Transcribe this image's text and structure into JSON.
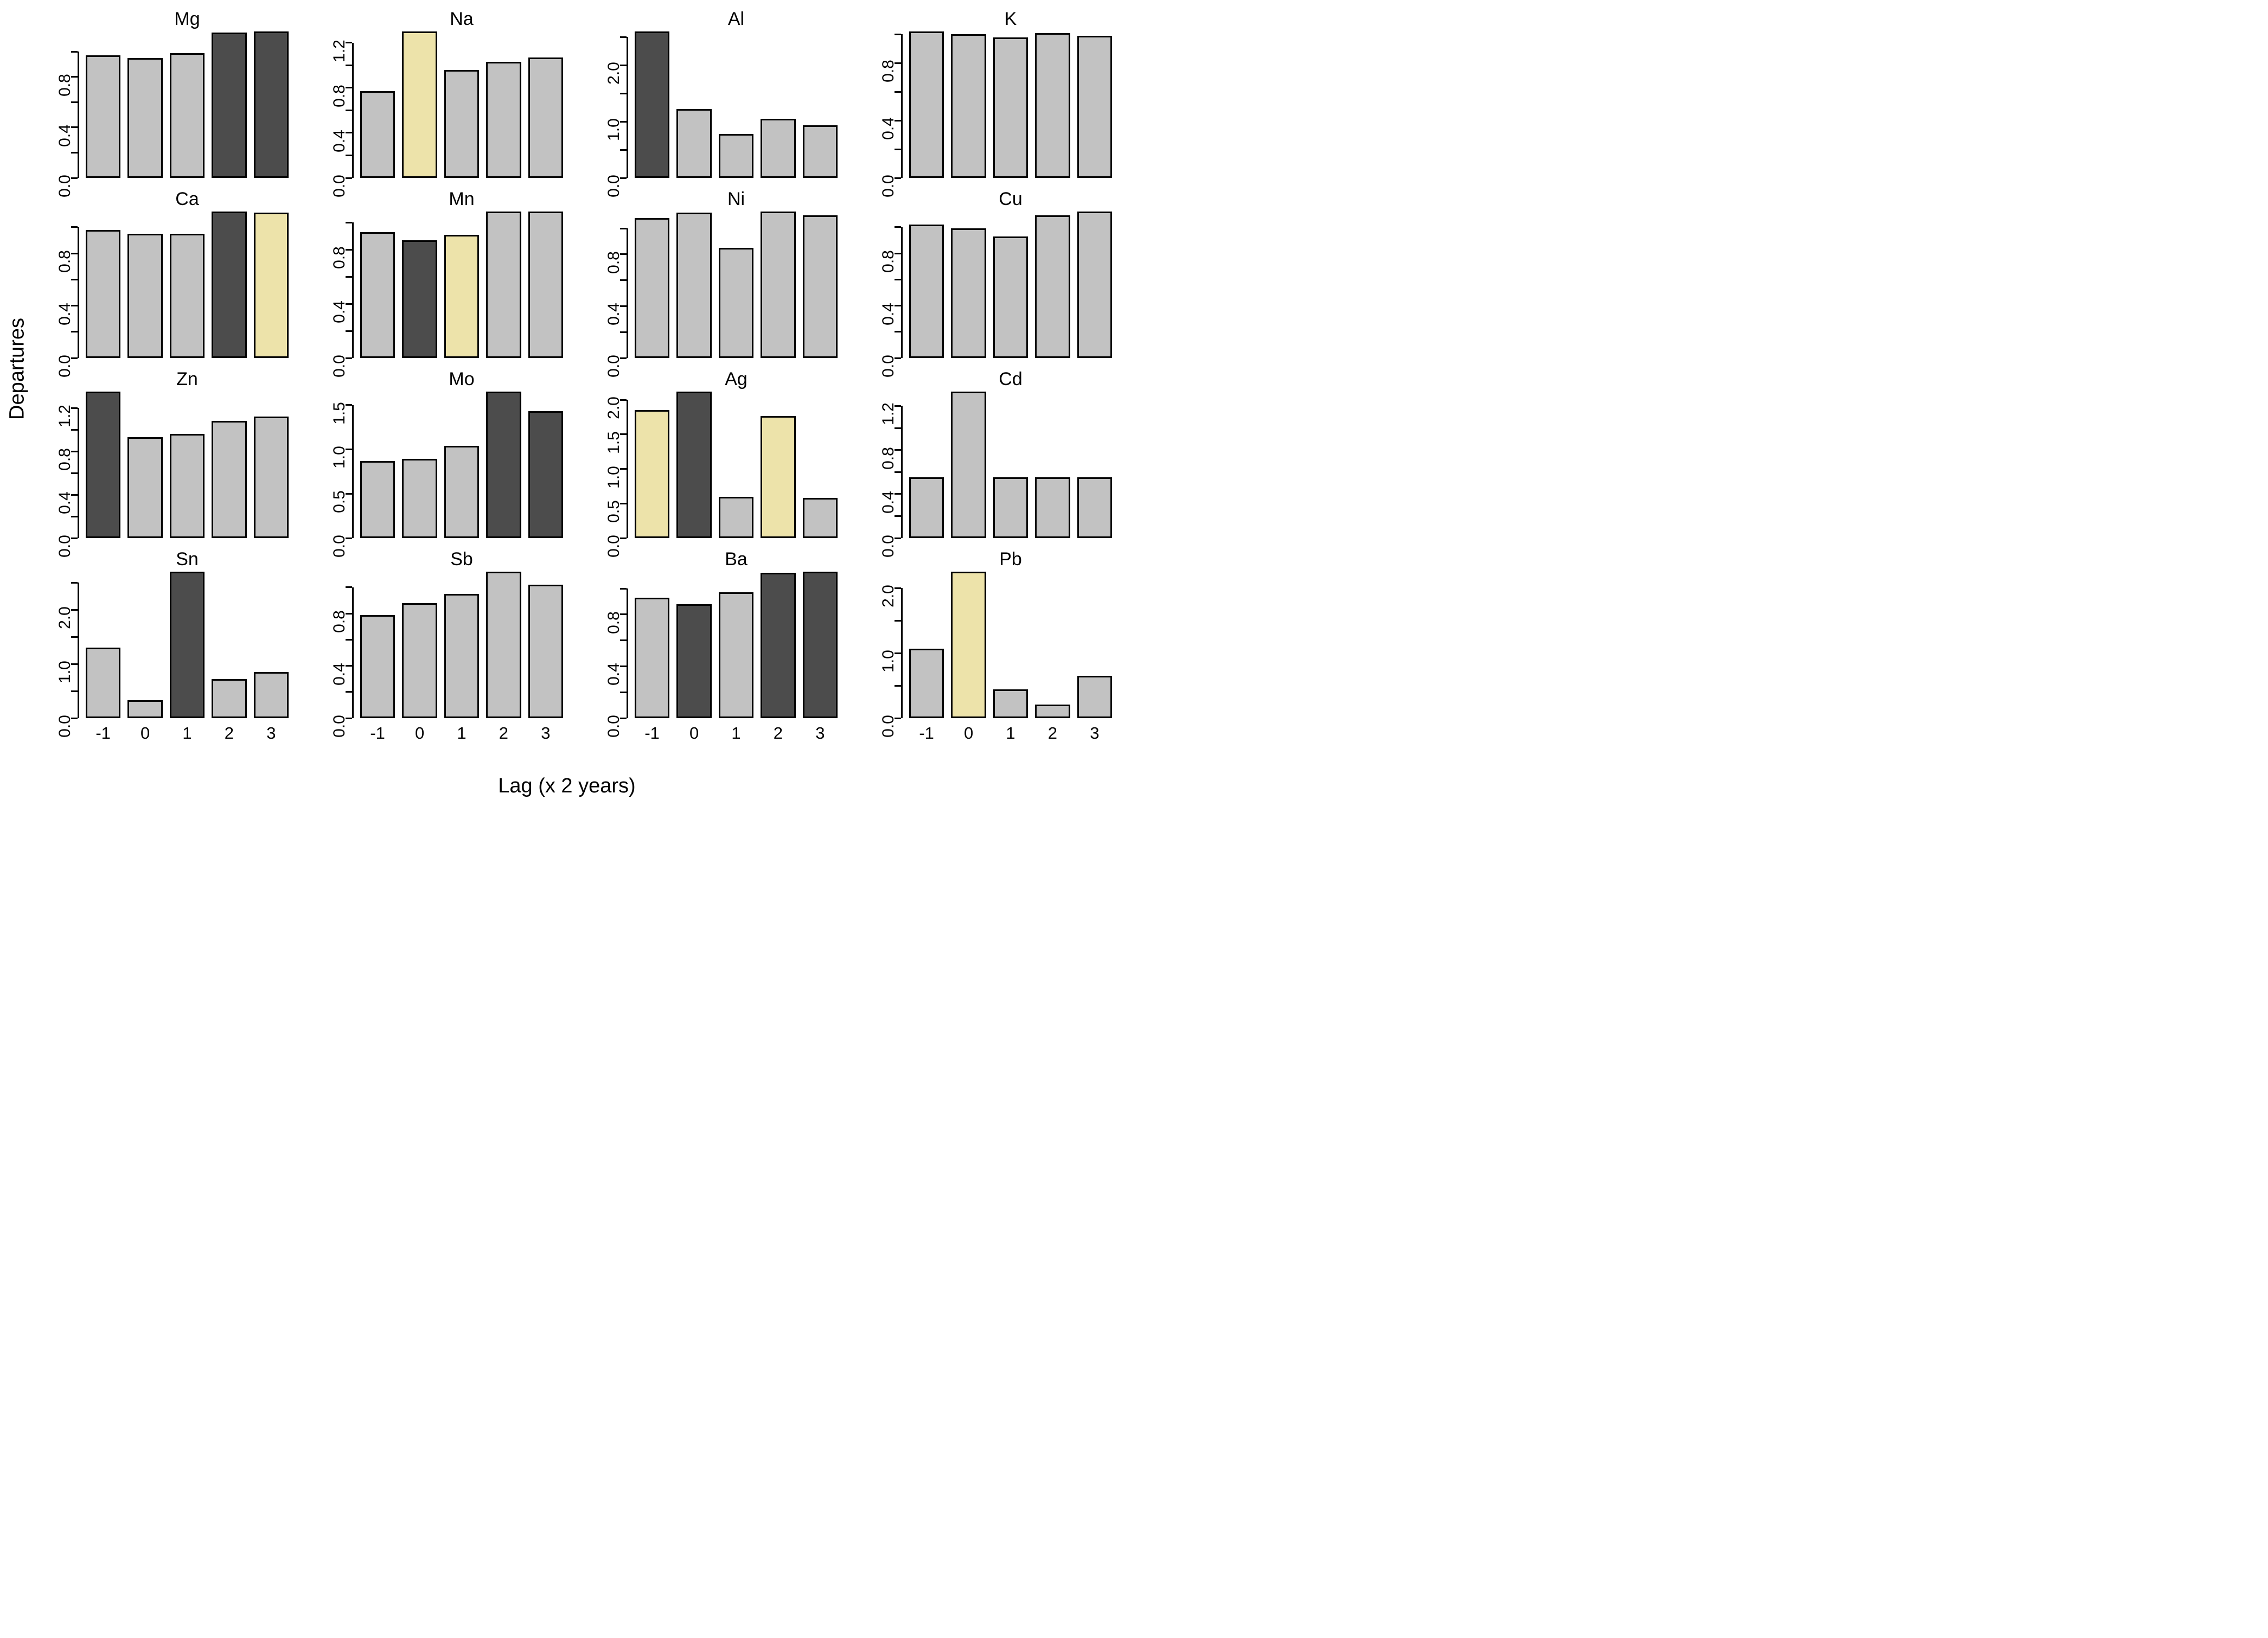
{
  "figure": {
    "ylabel": "Departures",
    "xlabel": "Lag (x 2 years)",
    "colors": {
      "gray": "#C2C2C2",
      "dark": "#4C4C4C",
      "tan": "#EDE3AA",
      "axis": "#000000",
      "background": "#FFFFFF"
    }
  },
  "x_tick_labels": [
    "-1",
    "0",
    "1",
    "2",
    "3"
  ],
  "chart_data": [
    {
      "type": "bar",
      "title": "Mg",
      "categories": [
        -1,
        0,
        1,
        2,
        3
      ],
      "values": [
        0.97,
        0.95,
        0.99,
        1.15,
        1.16
      ],
      "bar_colors": [
        "gray",
        "gray",
        "gray",
        "dark",
        "dark"
      ],
      "ymax": 1.16,
      "axis_top": 1.0,
      "ticks": [
        0,
        0.2,
        0.4,
        0.6,
        0.8,
        1.0
      ],
      "tick_labels": [
        "0.0",
        "",
        "0.4",
        "",
        "0.8",
        ""
      ]
    },
    {
      "type": "bar",
      "title": "Na",
      "categories": [
        -1,
        0,
        1,
        2,
        3
      ],
      "values": [
        0.77,
        1.3,
        0.96,
        1.03,
        1.07
      ],
      "bar_colors": [
        "gray",
        "tan",
        "gray",
        "gray",
        "gray"
      ],
      "ymax": 1.3,
      "axis_top": 1.2,
      "ticks": [
        0,
        0.2,
        0.4,
        0.6,
        0.8,
        1.0,
        1.2
      ],
      "tick_labels": [
        "0.0",
        "",
        "0.4",
        "",
        "0.8",
        "",
        "1.2"
      ]
    },
    {
      "type": "bar",
      "title": "Al",
      "categories": [
        -1,
        0,
        1,
        2,
        3
      ],
      "values": [
        2.6,
        1.22,
        0.78,
        1.05,
        0.93
      ],
      "bar_colors": [
        "dark",
        "gray",
        "gray",
        "gray",
        "gray"
      ],
      "ymax": 2.6,
      "axis_top": 2.5,
      "ticks": [
        0,
        0.5,
        1.0,
        1.5,
        2.0,
        2.5
      ],
      "tick_labels": [
        "0.0",
        "",
        "1.0",
        "",
        "2.0",
        ""
      ]
    },
    {
      "type": "bar",
      "title": "K",
      "categories": [
        -1,
        0,
        1,
        2,
        3
      ],
      "values": [
        1.02,
        1.0,
        0.98,
        1.01,
        0.99
      ],
      "bar_colors": [
        "gray",
        "gray",
        "gray",
        "gray",
        "gray"
      ],
      "ymax": 1.02,
      "axis_top": 1.0,
      "ticks": [
        0,
        0.2,
        0.4,
        0.6,
        0.8,
        1.0
      ],
      "tick_labels": [
        "0.0",
        "",
        "0.4",
        "",
        "0.8",
        ""
      ]
    },
    {
      "type": "bar",
      "title": "Ca",
      "categories": [
        -1,
        0,
        1,
        2,
        3
      ],
      "values": [
        0.98,
        0.95,
        0.95,
        1.12,
        1.11
      ],
      "bar_colors": [
        "gray",
        "gray",
        "gray",
        "dark",
        "tan"
      ],
      "ymax": 1.12,
      "axis_top": 1.0,
      "ticks": [
        0,
        0.2,
        0.4,
        0.6,
        0.8,
        1.0
      ],
      "tick_labels": [
        "0.0",
        "",
        "0.4",
        "",
        "0.8",
        ""
      ]
    },
    {
      "type": "bar",
      "title": "Mn",
      "categories": [
        -1,
        0,
        1,
        2,
        3
      ],
      "values": [
        0.93,
        0.87,
        0.91,
        1.08,
        1.08
      ],
      "bar_colors": [
        "gray",
        "dark",
        "tan",
        "gray",
        "gray"
      ],
      "ymax": 1.08,
      "axis_top": 1.0,
      "ticks": [
        0,
        0.2,
        0.4,
        0.6,
        0.8,
        1.0
      ],
      "tick_labels": [
        "0.0",
        "",
        "0.4",
        "",
        "0.8",
        ""
      ]
    },
    {
      "type": "bar",
      "title": "Ni",
      "categories": [
        -1,
        0,
        1,
        2,
        3
      ],
      "values": [
        1.08,
        1.12,
        0.85,
        1.13,
        1.1
      ],
      "bar_colors": [
        "gray",
        "gray",
        "gray",
        "gray",
        "gray"
      ],
      "ymax": 1.13,
      "axis_top": 1.0,
      "ticks": [
        0,
        0.2,
        0.4,
        0.6,
        0.8,
        1.0
      ],
      "tick_labels": [
        "0.0",
        "",
        "0.4",
        "",
        "0.8",
        ""
      ]
    },
    {
      "type": "bar",
      "title": "Cu",
      "categories": [
        -1,
        0,
        1,
        2,
        3
      ],
      "values": [
        1.02,
        0.99,
        0.93,
        1.09,
        1.12
      ],
      "bar_colors": [
        "gray",
        "gray",
        "gray",
        "gray",
        "gray"
      ],
      "ymax": 1.12,
      "axis_top": 1.0,
      "ticks": [
        0,
        0.2,
        0.4,
        0.6,
        0.8,
        1.0
      ],
      "tick_labels": [
        "0.0",
        "",
        "0.4",
        "",
        "0.8",
        ""
      ]
    },
    {
      "type": "bar",
      "title": "Zn",
      "categories": [
        -1,
        0,
        1,
        2,
        3
      ],
      "values": [
        1.35,
        0.93,
        0.96,
        1.08,
        1.12
      ],
      "bar_colors": [
        "dark",
        "gray",
        "gray",
        "gray",
        "gray"
      ],
      "ymax": 1.35,
      "axis_top": 1.2,
      "ticks": [
        0,
        0.2,
        0.4,
        0.6,
        0.8,
        1.0,
        1.2
      ],
      "tick_labels": [
        "0.0",
        "",
        "0.4",
        "",
        "0.8",
        "",
        "1.2"
      ]
    },
    {
      "type": "bar",
      "title": "Mo",
      "categories": [
        -1,
        0,
        1,
        2,
        3
      ],
      "values": [
        0.87,
        0.89,
        1.04,
        1.65,
        1.43
      ],
      "bar_colors": [
        "gray",
        "gray",
        "gray",
        "dark",
        "dark"
      ],
      "ymax": 1.65,
      "axis_top": 1.5,
      "ticks": [
        0,
        0.5,
        1.0,
        1.5
      ],
      "tick_labels": [
        "0.0",
        "0.5",
        "1.0",
        "1.5"
      ]
    },
    {
      "type": "bar",
      "title": "Ag",
      "categories": [
        -1,
        0,
        1,
        2,
        3
      ],
      "values": [
        1.85,
        2.12,
        0.6,
        1.77,
        0.58
      ],
      "bar_colors": [
        "tan",
        "dark",
        "gray",
        "tan",
        "gray"
      ],
      "ymax": 2.12,
      "axis_top": 2.0,
      "ticks": [
        0,
        0.5,
        1.0,
        1.5,
        2.0
      ],
      "tick_labels": [
        "0.0",
        "0.5",
        "1.0",
        "1.5",
        "2.0"
      ]
    },
    {
      "type": "bar",
      "title": "Cd",
      "categories": [
        -1,
        0,
        1,
        2,
        3
      ],
      "values": [
        0.55,
        1.33,
        0.55,
        0.55,
        0.55
      ],
      "bar_colors": [
        "gray",
        "gray",
        "gray",
        "gray",
        "gray"
      ],
      "ymax": 1.33,
      "axis_top": 1.2,
      "ticks": [
        0,
        0.2,
        0.4,
        0.6,
        0.8,
        1.0,
        1.2
      ],
      "tick_labels": [
        "0.0",
        "",
        "0.4",
        "",
        "0.8",
        "",
        "1.2"
      ]
    },
    {
      "type": "bar",
      "title": "Sn",
      "categories": [
        -1,
        0,
        1,
        2,
        3
      ],
      "values": [
        1.3,
        0.33,
        2.7,
        0.72,
        0.85
      ],
      "bar_colors": [
        "gray",
        "gray",
        "dark",
        "gray",
        "gray"
      ],
      "ymax": 2.7,
      "axis_top": 2.5,
      "ticks": [
        0,
        0.5,
        1.0,
        1.5,
        2.0,
        2.5
      ],
      "tick_labels": [
        "0.0",
        "",
        "1.0",
        "",
        "2.0",
        ""
      ]
    },
    {
      "type": "bar",
      "title": "Sb",
      "categories": [
        -1,
        0,
        1,
        2,
        3
      ],
      "values": [
        0.79,
        0.88,
        0.95,
        1.12,
        1.02
      ],
      "bar_colors": [
        "gray",
        "gray",
        "gray",
        "gray",
        "gray"
      ],
      "ymax": 1.12,
      "axis_top": 1.0,
      "ticks": [
        0,
        0.2,
        0.4,
        0.6,
        0.8,
        1.0
      ],
      "tick_labels": [
        "0.0",
        "",
        "0.4",
        "",
        "0.8",
        ""
      ]
    },
    {
      "type": "bar",
      "title": "Ba",
      "categories": [
        -1,
        0,
        1,
        2,
        3
      ],
      "values": [
        0.93,
        0.88,
        0.97,
        1.12,
        1.13
      ],
      "bar_colors": [
        "gray",
        "dark",
        "gray",
        "dark",
        "dark"
      ],
      "ymax": 1.13,
      "axis_top": 1.0,
      "ticks": [
        0,
        0.2,
        0.4,
        0.6,
        0.8,
        1.0
      ],
      "tick_labels": [
        "0.0",
        "",
        "0.4",
        "",
        "0.8",
        ""
      ]
    },
    {
      "type": "bar",
      "title": "Pb",
      "categories": [
        -1,
        0,
        1,
        2,
        3
      ],
      "values": [
        1.07,
        2.25,
        0.44,
        0.21,
        0.65
      ],
      "bar_colors": [
        "gray",
        "tan",
        "gray",
        "gray",
        "gray"
      ],
      "ymax": 2.25,
      "axis_top": 2.0,
      "ticks": [
        0,
        0.5,
        1.0,
        1.5,
        2.0
      ],
      "tick_labels": [
        "0.0",
        "",
        "1.0",
        "",
        "2.0"
      ]
    }
  ]
}
